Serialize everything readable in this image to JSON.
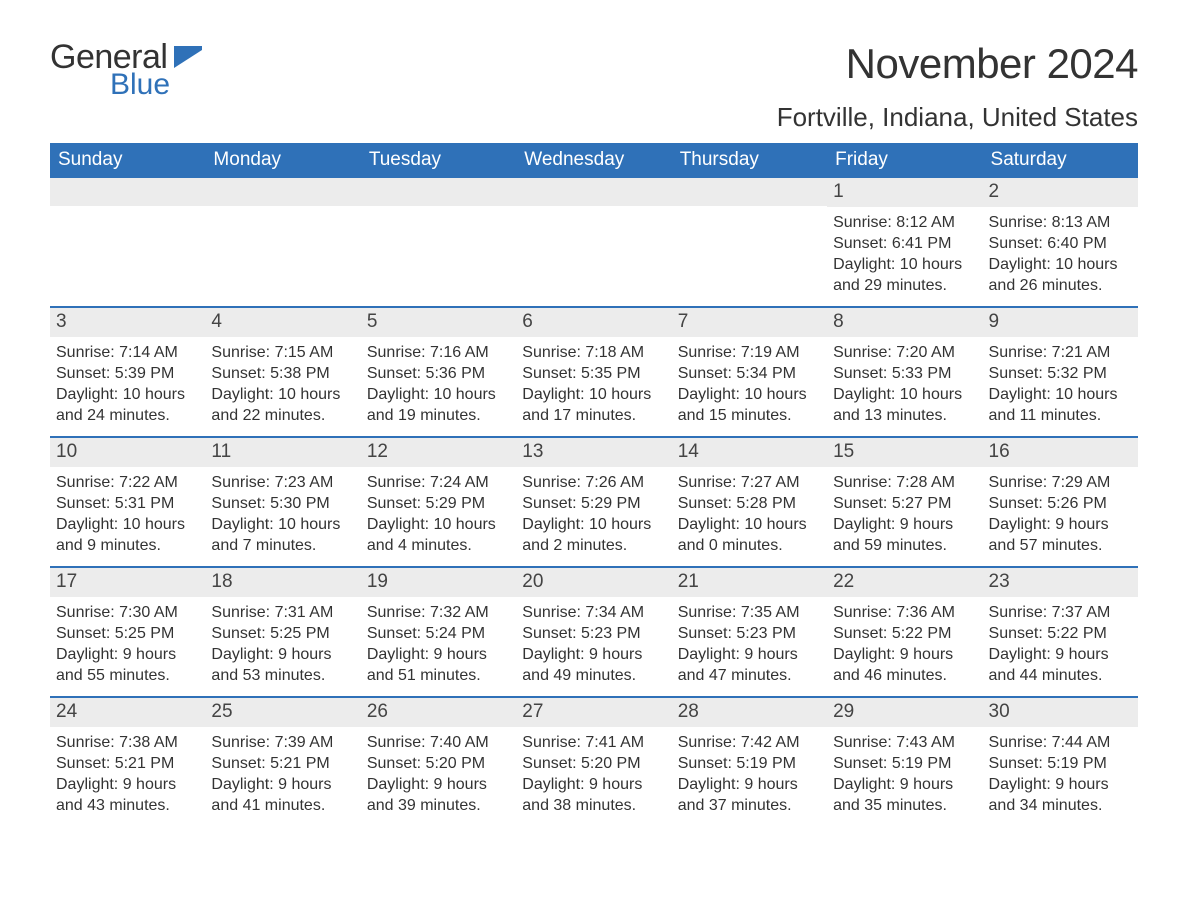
{
  "logo": {
    "word1": "General",
    "word2": "Blue",
    "flag_color": "#2f71b8"
  },
  "title": "November 2024",
  "location": "Fortville, Indiana, United States",
  "colors": {
    "header_bg": "#2f71b8",
    "header_text": "#ffffff",
    "daynum_bg": "#ececec",
    "text": "#333333",
    "rule": "#2f71b8",
    "page_bg": "#ffffff"
  },
  "weekdays": [
    "Sunday",
    "Monday",
    "Tuesday",
    "Wednesday",
    "Thursday",
    "Friday",
    "Saturday"
  ],
  "weeks": [
    [
      {
        "n": "",
        "sunrise": "",
        "sunset": "",
        "day1": "",
        "day2": ""
      },
      {
        "n": "",
        "sunrise": "",
        "sunset": "",
        "day1": "",
        "day2": ""
      },
      {
        "n": "",
        "sunrise": "",
        "sunset": "",
        "day1": "",
        "day2": ""
      },
      {
        "n": "",
        "sunrise": "",
        "sunset": "",
        "day1": "",
        "day2": ""
      },
      {
        "n": "",
        "sunrise": "",
        "sunset": "",
        "day1": "",
        "day2": ""
      },
      {
        "n": "1",
        "sunrise": "Sunrise: 8:12 AM",
        "sunset": "Sunset: 6:41 PM",
        "day1": "Daylight: 10 hours",
        "day2": "and 29 minutes."
      },
      {
        "n": "2",
        "sunrise": "Sunrise: 8:13 AM",
        "sunset": "Sunset: 6:40 PM",
        "day1": "Daylight: 10 hours",
        "day2": "and 26 minutes."
      }
    ],
    [
      {
        "n": "3",
        "sunrise": "Sunrise: 7:14 AM",
        "sunset": "Sunset: 5:39 PM",
        "day1": "Daylight: 10 hours",
        "day2": "and 24 minutes."
      },
      {
        "n": "4",
        "sunrise": "Sunrise: 7:15 AM",
        "sunset": "Sunset: 5:38 PM",
        "day1": "Daylight: 10 hours",
        "day2": "and 22 minutes."
      },
      {
        "n": "5",
        "sunrise": "Sunrise: 7:16 AM",
        "sunset": "Sunset: 5:36 PM",
        "day1": "Daylight: 10 hours",
        "day2": "and 19 minutes."
      },
      {
        "n": "6",
        "sunrise": "Sunrise: 7:18 AM",
        "sunset": "Sunset: 5:35 PM",
        "day1": "Daylight: 10 hours",
        "day2": "and 17 minutes."
      },
      {
        "n": "7",
        "sunrise": "Sunrise: 7:19 AM",
        "sunset": "Sunset: 5:34 PM",
        "day1": "Daylight: 10 hours",
        "day2": "and 15 minutes."
      },
      {
        "n": "8",
        "sunrise": "Sunrise: 7:20 AM",
        "sunset": "Sunset: 5:33 PM",
        "day1": "Daylight: 10 hours",
        "day2": "and 13 minutes."
      },
      {
        "n": "9",
        "sunrise": "Sunrise: 7:21 AM",
        "sunset": "Sunset: 5:32 PM",
        "day1": "Daylight: 10 hours",
        "day2": "and 11 minutes."
      }
    ],
    [
      {
        "n": "10",
        "sunrise": "Sunrise: 7:22 AM",
        "sunset": "Sunset: 5:31 PM",
        "day1": "Daylight: 10 hours",
        "day2": "and 9 minutes."
      },
      {
        "n": "11",
        "sunrise": "Sunrise: 7:23 AM",
        "sunset": "Sunset: 5:30 PM",
        "day1": "Daylight: 10 hours",
        "day2": "and 7 minutes."
      },
      {
        "n": "12",
        "sunrise": "Sunrise: 7:24 AM",
        "sunset": "Sunset: 5:29 PM",
        "day1": "Daylight: 10 hours",
        "day2": "and 4 minutes."
      },
      {
        "n": "13",
        "sunrise": "Sunrise: 7:26 AM",
        "sunset": "Sunset: 5:29 PM",
        "day1": "Daylight: 10 hours",
        "day2": "and 2 minutes."
      },
      {
        "n": "14",
        "sunrise": "Sunrise: 7:27 AM",
        "sunset": "Sunset: 5:28 PM",
        "day1": "Daylight: 10 hours",
        "day2": "and 0 minutes."
      },
      {
        "n": "15",
        "sunrise": "Sunrise: 7:28 AM",
        "sunset": "Sunset: 5:27 PM",
        "day1": "Daylight: 9 hours",
        "day2": "and 59 minutes."
      },
      {
        "n": "16",
        "sunrise": "Sunrise: 7:29 AM",
        "sunset": "Sunset: 5:26 PM",
        "day1": "Daylight: 9 hours",
        "day2": "and 57 minutes."
      }
    ],
    [
      {
        "n": "17",
        "sunrise": "Sunrise: 7:30 AM",
        "sunset": "Sunset: 5:25 PM",
        "day1": "Daylight: 9 hours",
        "day2": "and 55 minutes."
      },
      {
        "n": "18",
        "sunrise": "Sunrise: 7:31 AM",
        "sunset": "Sunset: 5:25 PM",
        "day1": "Daylight: 9 hours",
        "day2": "and 53 minutes."
      },
      {
        "n": "19",
        "sunrise": "Sunrise: 7:32 AM",
        "sunset": "Sunset: 5:24 PM",
        "day1": "Daylight: 9 hours",
        "day2": "and 51 minutes."
      },
      {
        "n": "20",
        "sunrise": "Sunrise: 7:34 AM",
        "sunset": "Sunset: 5:23 PM",
        "day1": "Daylight: 9 hours",
        "day2": "and 49 minutes."
      },
      {
        "n": "21",
        "sunrise": "Sunrise: 7:35 AM",
        "sunset": "Sunset: 5:23 PM",
        "day1": "Daylight: 9 hours",
        "day2": "and 47 minutes."
      },
      {
        "n": "22",
        "sunrise": "Sunrise: 7:36 AM",
        "sunset": "Sunset: 5:22 PM",
        "day1": "Daylight: 9 hours",
        "day2": "and 46 minutes."
      },
      {
        "n": "23",
        "sunrise": "Sunrise: 7:37 AM",
        "sunset": "Sunset: 5:22 PM",
        "day1": "Daylight: 9 hours",
        "day2": "and 44 minutes."
      }
    ],
    [
      {
        "n": "24",
        "sunrise": "Sunrise: 7:38 AM",
        "sunset": "Sunset: 5:21 PM",
        "day1": "Daylight: 9 hours",
        "day2": "and 43 minutes."
      },
      {
        "n": "25",
        "sunrise": "Sunrise: 7:39 AM",
        "sunset": "Sunset: 5:21 PM",
        "day1": "Daylight: 9 hours",
        "day2": "and 41 minutes."
      },
      {
        "n": "26",
        "sunrise": "Sunrise: 7:40 AM",
        "sunset": "Sunset: 5:20 PM",
        "day1": "Daylight: 9 hours",
        "day2": "and 39 minutes."
      },
      {
        "n": "27",
        "sunrise": "Sunrise: 7:41 AM",
        "sunset": "Sunset: 5:20 PM",
        "day1": "Daylight: 9 hours",
        "day2": "and 38 minutes."
      },
      {
        "n": "28",
        "sunrise": "Sunrise: 7:42 AM",
        "sunset": "Sunset: 5:19 PM",
        "day1": "Daylight: 9 hours",
        "day2": "and 37 minutes."
      },
      {
        "n": "29",
        "sunrise": "Sunrise: 7:43 AM",
        "sunset": "Sunset: 5:19 PM",
        "day1": "Daylight: 9 hours",
        "day2": "and 35 minutes."
      },
      {
        "n": "30",
        "sunrise": "Sunrise: 7:44 AM",
        "sunset": "Sunset: 5:19 PM",
        "day1": "Daylight: 9 hours",
        "day2": "and 34 minutes."
      }
    ]
  ]
}
